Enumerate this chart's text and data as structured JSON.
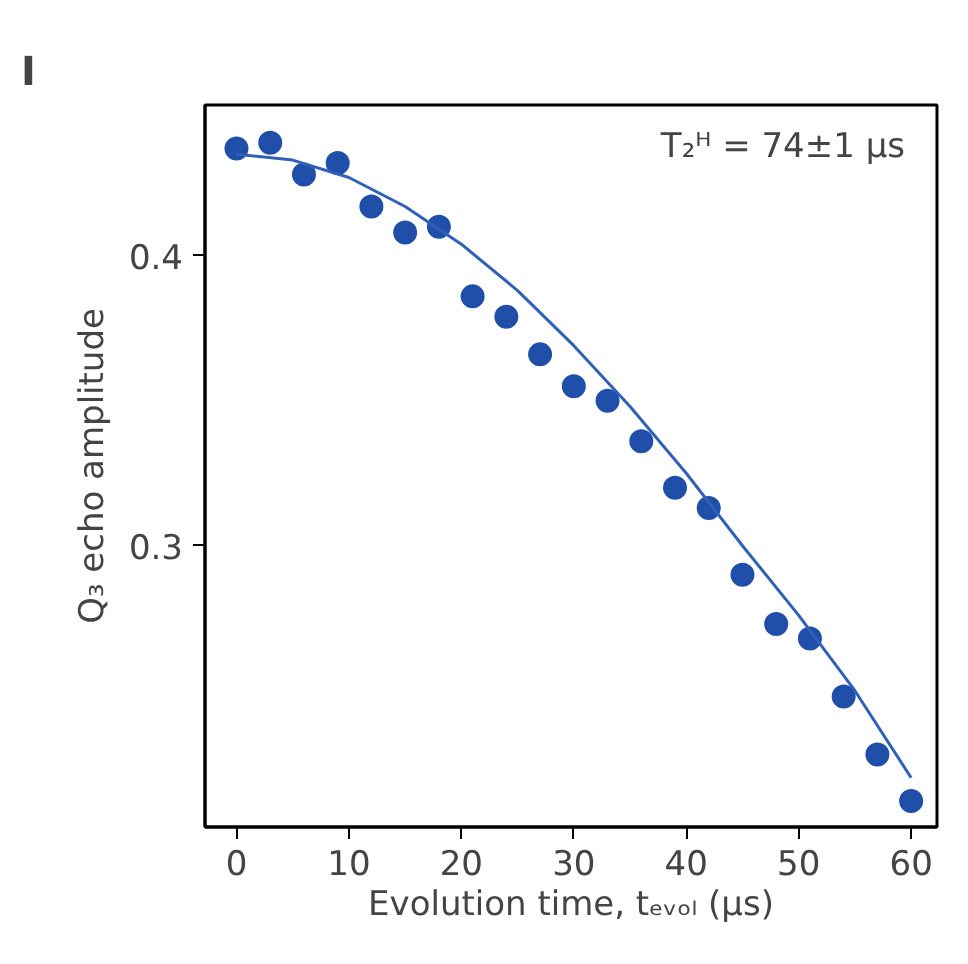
{
  "chart_data": {
    "type": "scatter",
    "title": "I",
    "xlabel": "Evolution time, tₑᵥₒₗ (μs)",
    "ylabel": "Q₃ echo amplitude",
    "x": [
      0,
      3,
      6,
      9,
      12,
      15,
      18,
      21,
      24,
      27,
      30,
      33,
      36,
      39,
      42,
      45,
      48,
      51,
      54,
      57,
      60
    ],
    "series": [
      {
        "color": "#1f4fa8",
        "values": [
          0.437,
          0.439,
          0.428,
          0.432,
          0.417,
          0.408,
          0.41,
          0.386,
          0.379,
          0.366,
          0.355,
          0.35,
          0.336,
          0.32,
          0.313,
          0.29,
          0.273,
          0.268,
          0.248,
          0.228,
          0.212
        ]
      },
      {
        "type": "line",
        "marker": "none",
        "color": "#3060b8",
        "x": [
          0,
          5,
          10,
          15,
          20,
          25,
          30,
          35,
          40,
          45,
          50,
          55,
          60
        ],
        "values": [
          0.435,
          0.433,
          0.427,
          0.417,
          0.404,
          0.388,
          0.369,
          0.348,
          0.325,
          0.3,
          0.276,
          0.25,
          0.22
        ]
      }
    ],
    "annotations": [
      "T₂ᴴ = 74±1 μs"
    ],
    "xlim": [
      -2.8,
      62.3
    ],
    "ylim": [
      0.203,
      0.452
    ],
    "xticks": [
      0,
      10,
      20,
      30,
      40,
      50,
      60
    ],
    "yticks": [
      0.3,
      0.4
    ],
    "grid": false,
    "marker": "circle",
    "line_style": "solid"
  }
}
